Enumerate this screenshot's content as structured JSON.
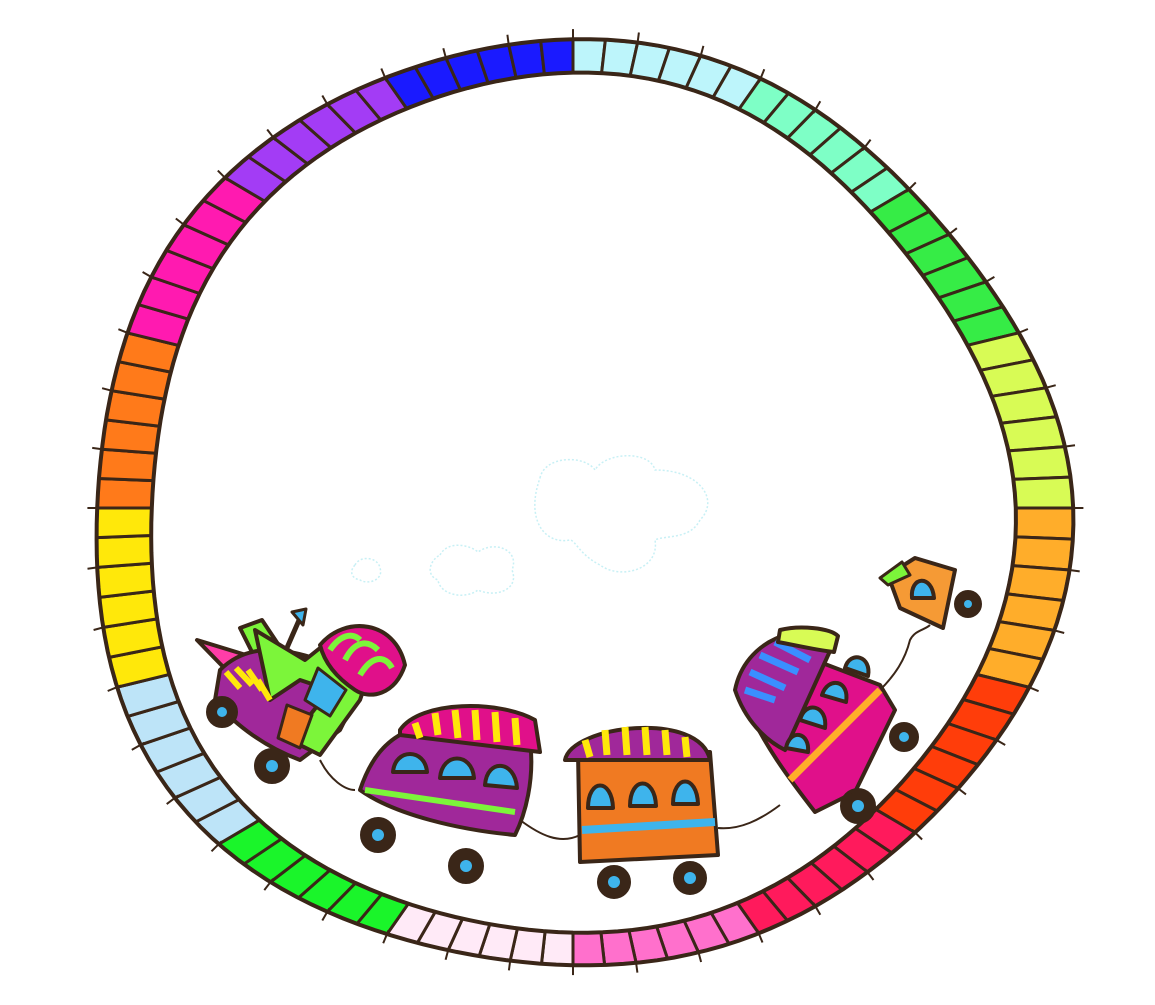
{
  "scene": {
    "subject": "train-track-frame",
    "background": "#ffffff",
    "outline_color": "#3a2618",
    "track_segments": [
      {
        "name": "sky-blue",
        "color": "#bdf5fb"
      },
      {
        "name": "mint",
        "color": "#7effc6"
      },
      {
        "name": "green",
        "color": "#36ec46"
      },
      {
        "name": "lime",
        "color": "#d8fb55"
      },
      {
        "name": "amber",
        "color": "#ffad2a"
      },
      {
        "name": "red-orange",
        "color": "#ff3d0a"
      },
      {
        "name": "crimson",
        "color": "#ff1a5c"
      },
      {
        "name": "pink",
        "color": "#ff70cc"
      },
      {
        "name": "pale-pink",
        "color": "#ffeaf7"
      },
      {
        "name": "bright-green",
        "color": "#1af52a"
      },
      {
        "name": "light-blue",
        "color": "#bde4f8"
      },
      {
        "name": "yellow",
        "color": "#ffe80a"
      },
      {
        "name": "orange",
        "color": "#ff7a1a"
      },
      {
        "name": "magenta",
        "color": "#ff1ab0"
      },
      {
        "name": "purple",
        "color": "#a33cf5"
      },
      {
        "name": "blue",
        "color": "#1a1aff"
      }
    ],
    "train_cars": [
      {
        "name": "locomotive",
        "body_color": "#7cf53a",
        "accent_color": "#a0289a"
      },
      {
        "name": "purple-car",
        "body_color": "#a0289a"
      },
      {
        "name": "orange-car",
        "body_color": "#f07a22"
      },
      {
        "name": "magenta-car",
        "body_color": "#e0108a"
      },
      {
        "name": "caboose",
        "body_color": "#f59a35"
      }
    ],
    "window_color": "#3eb4ec",
    "wheel_hub_color": "#3eb4ec"
  }
}
